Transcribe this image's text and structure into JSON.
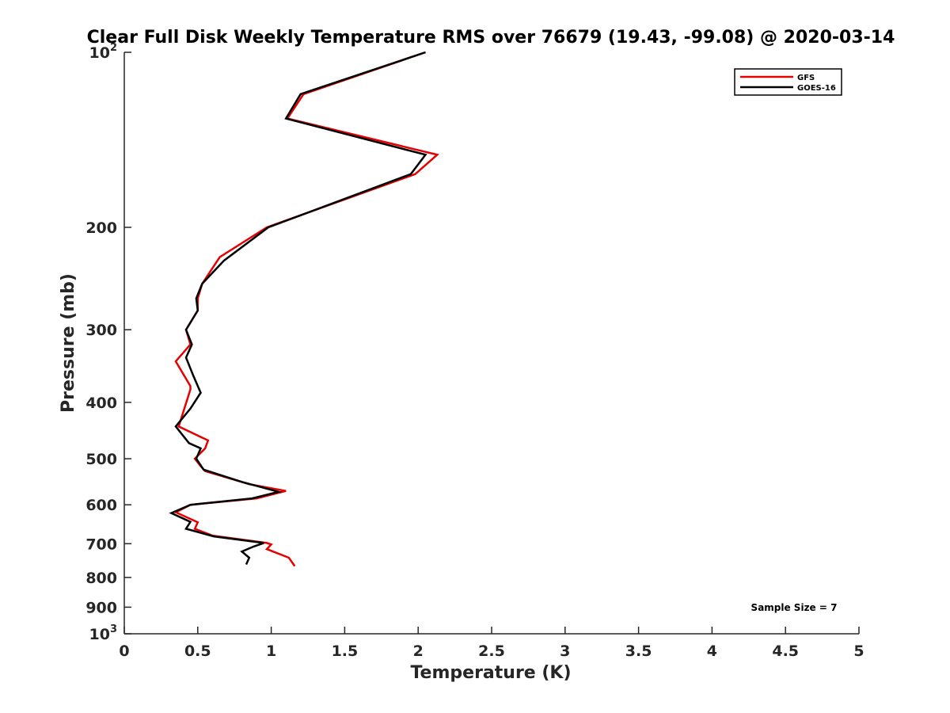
{
  "chart_data": {
    "type": "line",
    "title": "Clear Full Disk Weekly Temperature RMS over 76679 (19.43, -99.08) @ 2020-03-14",
    "xlabel": "Temperature (K)",
    "ylabel": "Pressure (mb)",
    "xlim": [
      0,
      5
    ],
    "ylim": [
      100,
      1000
    ],
    "y_scale": "log",
    "y_reversed": true,
    "grid": false,
    "legend_position": "top-right",
    "x_ticks": [
      "0",
      "0.5",
      "1",
      "1.5",
      "2",
      "2.5",
      "3",
      "3.5",
      "4",
      "4.5",
      "5"
    ],
    "y_ticks": [
      {
        "value": 100,
        "label": "10",
        "exp": "2"
      },
      {
        "value": 200,
        "label": "200"
      },
      {
        "value": 300,
        "label": "300"
      },
      {
        "value": 400,
        "label": "400"
      },
      {
        "value": 500,
        "label": "500"
      },
      {
        "value": 600,
        "label": "600"
      },
      {
        "value": 700,
        "label": "700"
      },
      {
        "value": 800,
        "label": "800"
      },
      {
        "value": 900,
        "label": "900"
      },
      {
        "value": 1000,
        "label": "10",
        "exp": "3"
      }
    ],
    "series": [
      {
        "name": "GFS",
        "color": "#e60000",
        "points": [
          [
            2.05,
            100
          ],
          [
            1.22,
            118
          ],
          [
            1.11,
            130
          ],
          [
            2.13,
            150
          ],
          [
            1.98,
            162
          ],
          [
            0.97,
            200
          ],
          [
            0.65,
            225
          ],
          [
            0.53,
            250
          ],
          [
            0.5,
            265
          ],
          [
            0.5,
            278
          ],
          [
            0.42,
            300
          ],
          [
            0.45,
            318
          ],
          [
            0.35,
            340
          ],
          [
            0.45,
            375
          ],
          [
            0.45,
            380
          ],
          [
            0.37,
            440
          ],
          [
            0.57,
            465
          ],
          [
            0.55,
            480
          ],
          [
            0.48,
            500
          ],
          [
            0.52,
            515
          ],
          [
            0.55,
            525
          ],
          [
            0.85,
            553
          ],
          [
            1.1,
            568
          ],
          [
            0.9,
            585
          ],
          [
            0.45,
            600
          ],
          [
            0.35,
            618
          ],
          [
            0.5,
            643
          ],
          [
            0.48,
            660
          ],
          [
            0.6,
            678
          ],
          [
            0.97,
            698
          ],
          [
            1.0,
            702
          ],
          [
            0.97,
            715
          ],
          [
            1.12,
            740
          ],
          [
            1.16,
            765
          ]
        ]
      },
      {
        "name": "GOES-16",
        "color": "#000000",
        "points": [
          [
            2.05,
            100
          ],
          [
            1.2,
            118
          ],
          [
            1.1,
            130
          ],
          [
            2.05,
            150
          ],
          [
            1.95,
            162
          ],
          [
            0.98,
            200
          ],
          [
            0.68,
            228
          ],
          [
            0.53,
            250
          ],
          [
            0.49,
            265
          ],
          [
            0.5,
            278
          ],
          [
            0.42,
            300
          ],
          [
            0.46,
            318
          ],
          [
            0.42,
            335
          ],
          [
            0.47,
            360
          ],
          [
            0.52,
            385
          ],
          [
            0.45,
            410
          ],
          [
            0.35,
            440
          ],
          [
            0.44,
            470
          ],
          [
            0.52,
            480
          ],
          [
            0.49,
            500
          ],
          [
            0.54,
            522
          ],
          [
            0.8,
            548
          ],
          [
            1.05,
            570
          ],
          [
            0.87,
            585
          ],
          [
            0.45,
            600
          ],
          [
            0.32,
            620
          ],
          [
            0.45,
            642
          ],
          [
            0.42,
            660
          ],
          [
            0.61,
            680
          ],
          [
            0.95,
            698
          ],
          [
            0.88,
            708
          ],
          [
            0.8,
            722
          ],
          [
            0.85,
            740
          ],
          [
            0.83,
            760
          ]
        ]
      }
    ],
    "annotations": [
      "Sample Size = 7"
    ]
  }
}
